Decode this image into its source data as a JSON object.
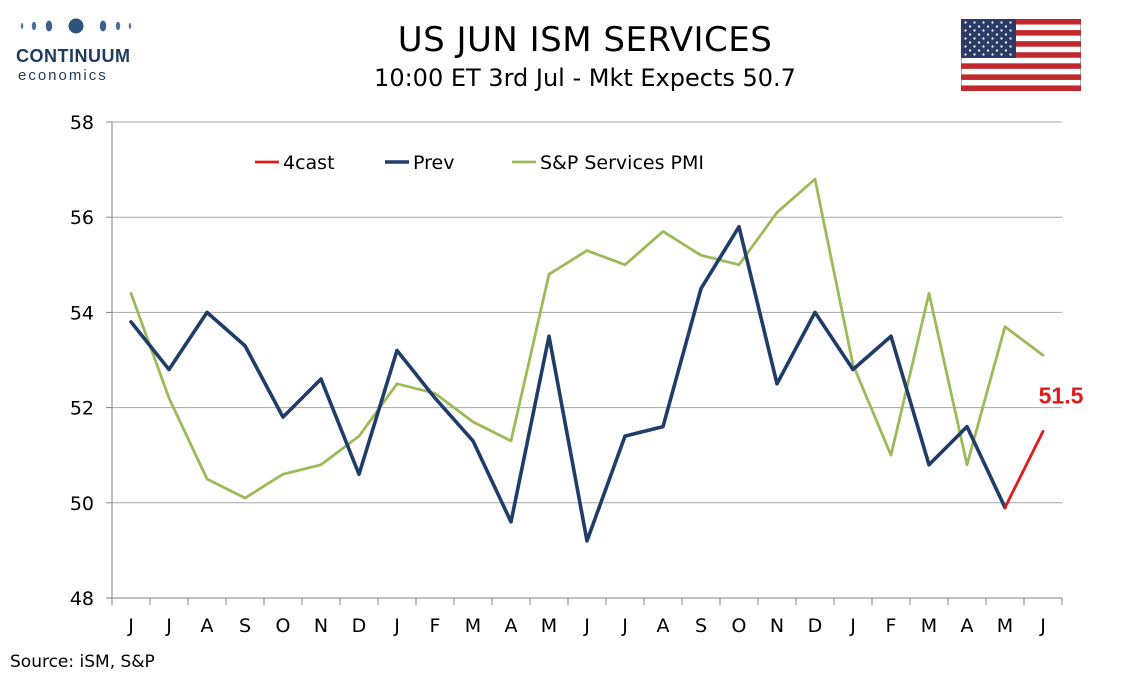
{
  "header": {
    "title": "US JUN ISM SERVICES",
    "subtitle": "10:00 ET 3rd Jul - Mkt Expects 50.7"
  },
  "logo": {
    "line1": "CONTINUUM",
    "line2": "economics"
  },
  "flag": {
    "icon": "us-flag-icon"
  },
  "footer": {
    "source": "Source: iSM, S&P"
  },
  "colors": {
    "forecast": "#e31a1c",
    "prev": "#1f3d68",
    "pmi": "#9bbb59",
    "grid": "#a6a6a6",
    "logo": "#1b3a5c"
  },
  "chart_data": {
    "type": "line",
    "categories": [
      "J",
      "J",
      "A",
      "S",
      "O",
      "N",
      "D",
      "J",
      "F",
      "M",
      "A",
      "M",
      "J",
      "J",
      "A",
      "S",
      "O",
      "N",
      "D",
      "J",
      "F",
      "M",
      "A",
      "M",
      "J"
    ],
    "ylim": [
      48,
      58
    ],
    "yticks": [
      48,
      50,
      52,
      54,
      56,
      58
    ],
    "grid": true,
    "legend_position": "top",
    "series": [
      {
        "name": "4cast",
        "color": "#e31a1c",
        "values": [
          null,
          null,
          null,
          null,
          null,
          null,
          null,
          null,
          null,
          null,
          null,
          null,
          null,
          null,
          null,
          null,
          null,
          null,
          null,
          null,
          null,
          null,
          null,
          49.9,
          51.5
        ]
      },
      {
        "name": "Prev",
        "color": "#1f3d68",
        "values": [
          53.8,
          52.8,
          54.0,
          53.3,
          51.8,
          52.6,
          50.6,
          53.2,
          52.2,
          51.3,
          49.6,
          53.5,
          49.2,
          51.4,
          51.6,
          54.5,
          55.8,
          52.5,
          54.0,
          52.8,
          53.5,
          50.8,
          51.6,
          49.9,
          null
        ]
      },
      {
        "name": "S&P Services PMI",
        "color": "#9bbb59",
        "values": [
          54.4,
          52.2,
          50.5,
          50.1,
          50.6,
          50.8,
          51.4,
          52.5,
          52.3,
          51.7,
          51.3,
          54.8,
          55.3,
          55.0,
          55.7,
          55.2,
          55.0,
          56.1,
          56.8,
          52.9,
          51.0,
          54.4,
          50.8,
          53.7,
          53.1
        ]
      }
    ],
    "annotations": [
      {
        "text": "51.5",
        "x_index": 24,
        "y": 51.5,
        "color": "#e31a1c"
      }
    ]
  }
}
